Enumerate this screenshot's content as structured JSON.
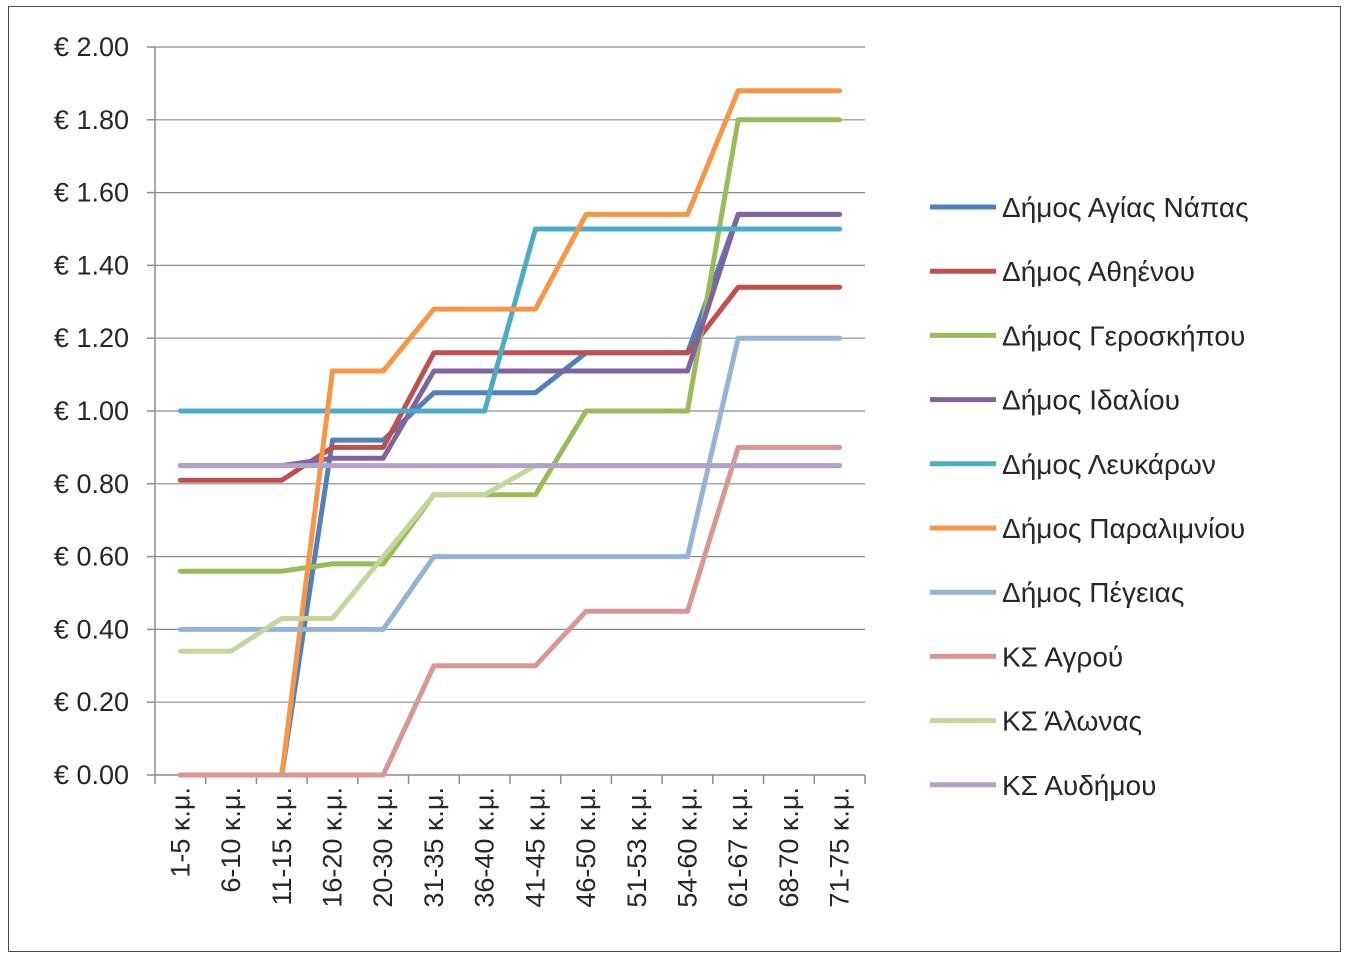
{
  "chart_data": {
    "type": "line",
    "title": "",
    "xlabel": "",
    "ylabel": "",
    "ylim": [
      0,
      2.0
    ],
    "y_ticks": [
      "€ 0.00",
      "€ 0.20",
      "€ 0.40",
      "€ 0.60",
      "€ 0.80",
      "€ 1.00",
      "€ 1.20",
      "€ 1.40",
      "€ 1.60",
      "€ 1.80",
      "€ 2.00"
    ],
    "grid": true,
    "legend_position": "right",
    "categories": [
      "1-5 κ.μ.",
      "6-10 κ.μ.",
      "11-15 κ.μ.",
      "16-20 κ.μ.",
      "20-30 κ.μ.",
      "31-35 κ.μ.",
      "36-40 κ.μ.",
      "41-45 κ.μ.",
      "46-50 κ.μ.",
      "51-53 κ.μ.",
      "54-60 κ.μ.",
      "61-67 κ.μ.",
      "68-70 κ.μ.",
      "71-75 κ.μ."
    ],
    "series": [
      {
        "name": "Δήμος Αγίας Νάπας",
        "color": "#4f81bd",
        "values": [
          0,
          0,
          0,
          0.92,
          0.92,
          1.05,
          1.05,
          1.05,
          1.16,
          1.16,
          1.16,
          1.54,
          1.54,
          1.54
        ]
      },
      {
        "name": "Δήμος Αθηένου",
        "color": "#c0504d",
        "values": [
          0.81,
          0.81,
          0.81,
          0.9,
          0.9,
          1.16,
          1.16,
          1.16,
          1.16,
          1.16,
          1.16,
          1.34,
          1.34,
          1.34
        ]
      },
      {
        "name": "Δήμος Γεροσκήπου",
        "color": "#9bbb59",
        "values": [
          0.56,
          0.56,
          0.56,
          0.58,
          0.58,
          0.77,
          0.77,
          0.77,
          1.0,
          1.0,
          1.0,
          1.8,
          1.8,
          1.8
        ]
      },
      {
        "name": "Δήμος Ιδαλίου",
        "color": "#8064a2",
        "values": [
          0.85,
          0.85,
          0.85,
          0.87,
          0.87,
          1.11,
          1.11,
          1.11,
          1.11,
          1.11,
          1.11,
          1.54,
          1.54,
          1.54
        ]
      },
      {
        "name": "Δήμος Λευκάρων",
        "color": "#4bacc6",
        "values": [
          1.0,
          1.0,
          1.0,
          1.0,
          1.0,
          1.0,
          1.0,
          1.5,
          1.5,
          1.5,
          1.5,
          1.5,
          1.5,
          1.5
        ]
      },
      {
        "name": "Δήμος Παραλιμνίου",
        "color": "#f79646",
        "values": [
          0,
          0,
          0,
          1.11,
          1.11,
          1.28,
          1.28,
          1.28,
          1.54,
          1.54,
          1.54,
          1.88,
          1.88,
          1.88
        ]
      },
      {
        "name": "Δήμος Πέγειας",
        "color": "#95b3d7",
        "values": [
          0.4,
          0.4,
          0.4,
          0.4,
          0.4,
          0.6,
          0.6,
          0.6,
          0.6,
          0.6,
          0.6,
          1.2,
          1.2,
          1.2
        ]
      },
      {
        "name": "ΚΣ Αγρού",
        "color": "#d99694",
        "values": [
          0,
          0,
          0,
          0,
          0,
          0.3,
          0.3,
          0.3,
          0.45,
          0.45,
          0.45,
          0.9,
          0.9,
          0.9
        ]
      },
      {
        "name": "ΚΣ Άλωνας",
        "color": "#c3d69b",
        "values": [
          0.34,
          0.34,
          0.43,
          0.43,
          0.6,
          0.77,
          0.77,
          0.85,
          0.85,
          0.85,
          0.85,
          0.85,
          0.85,
          0.85
        ]
      },
      {
        "name": "ΚΣ Αυδήμου",
        "color": "#b3a2c7",
        "values": [
          0.85,
          0.85,
          0.85,
          0.85,
          0.85,
          0.85,
          0.85,
          0.85,
          0.85,
          0.85,
          0.85,
          0.85,
          0.85,
          0.85
        ]
      }
    ]
  }
}
